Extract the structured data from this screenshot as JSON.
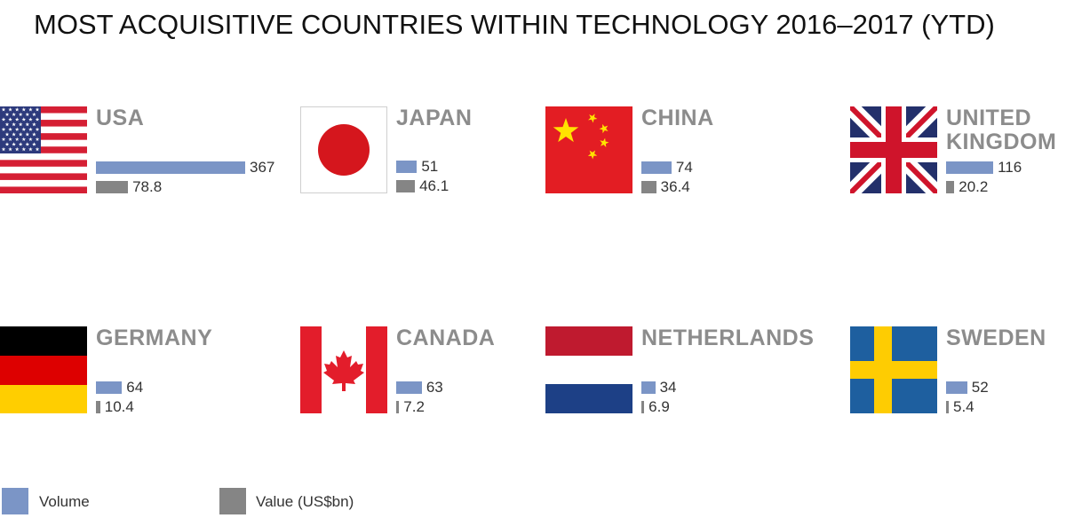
{
  "title": "MOST ACQUISITIVE COUNTRIES WITHIN TECHNOLOGY 2016–2017 (YTD)",
  "chart_data": {
    "type": "bar",
    "title": "MOST ACQUISITIVE COUNTRIES WITHIN TECHNOLOGY 2016–2017 (YTD)",
    "categories": [
      "USA",
      "JAPAN",
      "CHINA",
      "UNITED KINGDOM",
      "GERMANY",
      "CANADA",
      "NETHERLANDS",
      "SWEDEN"
    ],
    "series": [
      {
        "name": "Volume",
        "values": [
          367,
          51,
          74,
          116,
          64,
          63,
          34,
          52
        ],
        "labels": [
          "367",
          "51",
          "74",
          "116",
          "64",
          "63",
          "34",
          "52"
        ]
      },
      {
        "name": "Value (US$bn)",
        "values": [
          78.8,
          46.1,
          36.4,
          20.2,
          10.4,
          7.2,
          6.9,
          5.4
        ],
        "labels": [
          "78.8",
          "46.1",
          "36.4",
          "20.2",
          "10.4",
          "7.2",
          "6.9",
          "5.4"
        ]
      }
    ],
    "legend": "bottom-left",
    "grid": false
  },
  "countries": [
    {
      "name_lines": [
        "USA"
      ],
      "flag": "usa-flag-icon"
    },
    {
      "name_lines": [
        "JAPAN"
      ],
      "flag": "japan-flag-icon"
    },
    {
      "name_lines": [
        "CHINA"
      ],
      "flag": "china-flag-icon"
    },
    {
      "name_lines": [
        "UNITED",
        "KINGDOM"
      ],
      "flag": "uk-flag-icon"
    },
    {
      "name_lines": [
        "GERMANY"
      ],
      "flag": "germany-flag-icon"
    },
    {
      "name_lines": [
        "CANADA"
      ],
      "flag": "canada-flag-icon"
    },
    {
      "name_lines": [
        "NETHERLANDS"
      ],
      "flag": "netherlands-flag-icon"
    },
    {
      "name_lines": [
        "SWEDEN"
      ],
      "flag": "sweden-flag-icon"
    }
  ],
  "legend": [
    {
      "label": "Volume",
      "color": "#7b95c6"
    },
    {
      "label": "Value (US$bn)",
      "color": "#858585"
    }
  ],
  "colors": {
    "volume": "#7b95c6",
    "value": "#858585",
    "country_text": "#8c8c8c"
  }
}
